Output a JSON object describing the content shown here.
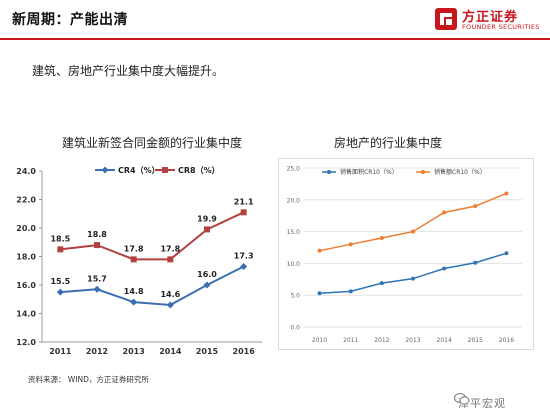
{
  "slide": {
    "title": "新周期：产能出清",
    "subtitle": "建筑、房地产行业集中度大幅提升。",
    "source": "资料来源： WIND，方正证券研究所",
    "accent_color": "#c8161d"
  },
  "logo": {
    "name_cn": "方正证券",
    "name_en": "FOUNDER SECURITIES",
    "icon": "founder-logo-icon"
  },
  "watermark": {
    "text": "泽平宏观",
    "icon": "wechat-icon"
  },
  "chart_data": [
    {
      "type": "line",
      "title": "建筑业新签合同金额的行业集中度",
      "categories": [
        "2011",
        "2012",
        "2013",
        "2014",
        "2015",
        "2016"
      ],
      "series": [
        {
          "name": "CR4（%）",
          "values": [
            15.5,
            15.7,
            14.8,
            14.6,
            16.0,
            17.3
          ],
          "labels": [
            "15.5",
            "15.7",
            "14.8",
            "14.6",
            "16.0",
            "17.3"
          ],
          "color": "#3c6fb0",
          "marker": "diamond"
        },
        {
          "name": "CR8（%）",
          "values": [
            18.5,
            18.8,
            17.8,
            17.8,
            19.9,
            21.1
          ],
          "labels": [
            "18.5",
            "18.8",
            "17.8",
            "17.8",
            "19.9",
            "21.1"
          ],
          "color": "#b2413f",
          "marker": "square"
        }
      ],
      "ylim": [
        12.0,
        24.0
      ],
      "yticks": [
        "12.0",
        "14.0",
        "16.0",
        "18.0",
        "20.0",
        "22.0",
        "24.0"
      ],
      "grid": false,
      "legend_position": "top"
    },
    {
      "type": "line",
      "title": "房地产的行业集中度",
      "categories": [
        "2010",
        "2011",
        "2012",
        "2013",
        "2014",
        "2015",
        "2016"
      ],
      "series": [
        {
          "name": "销售面积CR10（%）",
          "values": [
            5.3,
            5.6,
            6.9,
            7.6,
            9.2,
            10.1,
            11.6
          ],
          "color": "#2e75b6"
        },
        {
          "name": "销售额CR10（%）",
          "values": [
            12.0,
            13.0,
            14.0,
            15.0,
            18.0,
            19.0,
            21.0
          ],
          "color": "#ed7d31"
        }
      ],
      "ylim": [
        0,
        25
      ],
      "yticks": [
        "0.0",
        "5.0",
        "10.0",
        "15.0",
        "20.0",
        "25.0"
      ],
      "grid": true,
      "legend_position": "top"
    }
  ]
}
